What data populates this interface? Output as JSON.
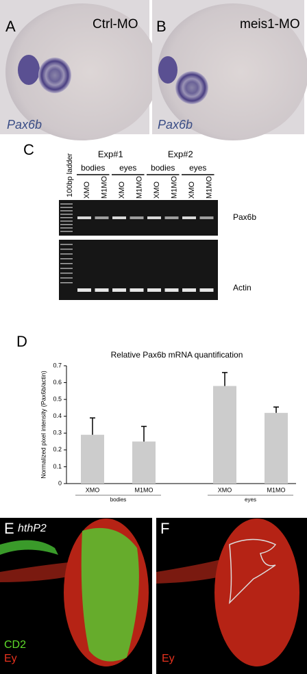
{
  "panels": {
    "A": {
      "letter": "A",
      "label": "Ctrl-MO",
      "gene": "Pax6b"
    },
    "B": {
      "letter": "B",
      "label": "meis1-MO",
      "gene": "Pax6b"
    },
    "C": {
      "letter": "C",
      "ladder": "100bp ladder",
      "experiments": [
        {
          "name": "Exp#1",
          "groups": [
            {
              "name": "bodies",
              "lanes": [
                "XMO",
                "M1MO"
              ]
            },
            {
              "name": "eyes",
              "lanes": [
                "XMO",
                "M1MO"
              ]
            }
          ]
        },
        {
          "name": "Exp#2",
          "groups": [
            {
              "name": "bodies",
              "lanes": [
                "XMO",
                "M1MO"
              ]
            },
            {
              "name": "eyes",
              "lanes": [
                "XMO",
                "M1MO"
              ]
            }
          ]
        }
      ],
      "bands": [
        "Pax6b",
        "Actin"
      ]
    },
    "D": {
      "letter": "D"
    },
    "E": {
      "letter": "E",
      "gene": "hthP2",
      "stains": [
        "CD2",
        "Ey"
      ]
    },
    "F": {
      "letter": "F",
      "stains": [
        "Ey"
      ]
    }
  },
  "chart_data": {
    "type": "bar",
    "title": "Relative Pax6b mRNA quantification",
    "ylabel": "Normalized pixel intensity (Pax6b/actin)",
    "categories": [
      "XMO",
      "M1MO",
      "XMO",
      "M1MO"
    ],
    "groups": [
      "bodies",
      "eyes"
    ],
    "values": [
      0.29,
      0.25,
      0.58,
      0.42
    ],
    "errors": [
      0.1,
      0.09,
      0.08,
      0.035
    ],
    "color": "#cccccc",
    "ylim": [
      0,
      0.7
    ],
    "yticks": [
      0,
      0.1,
      0.2,
      0.3,
      0.4,
      0.5,
      0.6,
      0.7
    ]
  }
}
